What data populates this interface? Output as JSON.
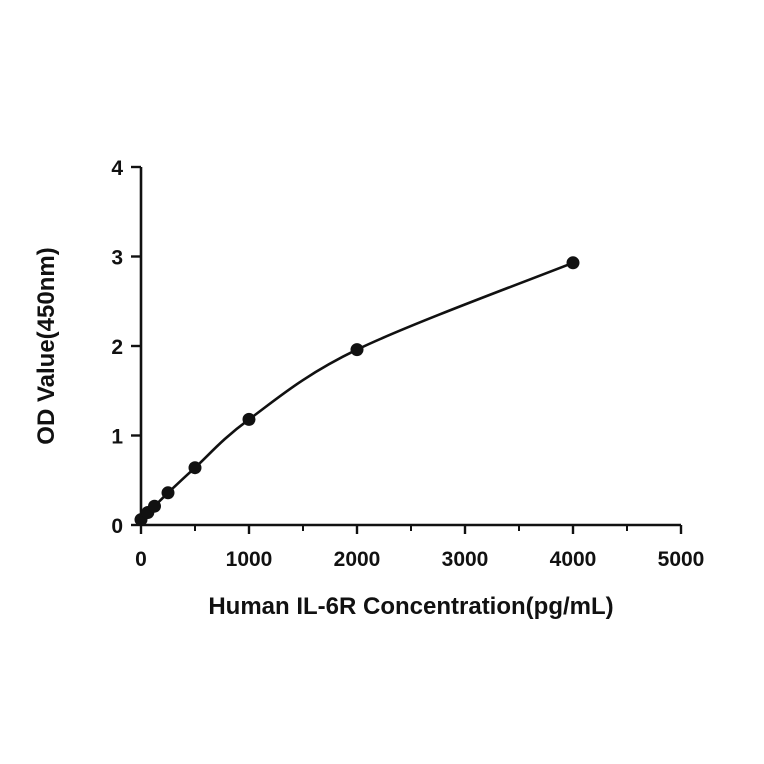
{
  "chart_data": {
    "type": "scatter",
    "xlabel": "Human IL-6R Concentration(pg/mL)",
    "ylabel": "OD Value(450nm)",
    "xlim": [
      0,
      5000
    ],
    "ylim": [
      0,
      4
    ],
    "x_ticks": [
      "0",
      "1000",
      "2000",
      "3000",
      "4000",
      "5000"
    ],
    "y_ticks": [
      "0",
      "1",
      "2",
      "3",
      "4"
    ],
    "x_minor_tick_step": 500,
    "grid": false,
    "legend": "none",
    "colors": {
      "marks": "#111111",
      "axes": "#111111",
      "background": "#ffffff"
    },
    "series": [
      {
        "x": [
          0,
          62.5,
          125,
          250,
          500,
          1000,
          2000,
          4000
        ],
        "y": [
          0.06,
          0.14,
          0.21,
          0.36,
          0.64,
          1.18,
          1.96,
          2.93
        ],
        "fit_line": "smooth"
      }
    ]
  }
}
